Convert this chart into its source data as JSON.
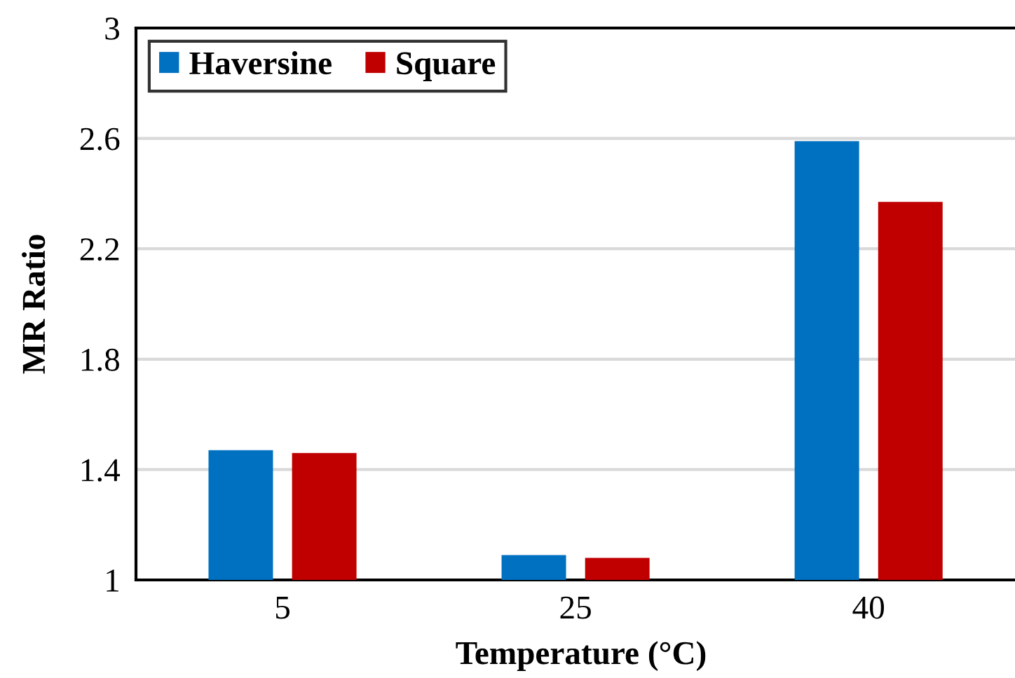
{
  "chart_data": {
    "type": "bar",
    "xlabel": "Temperature (°C)",
    "ylabel": "MR Ratio",
    "categories": [
      "5",
      "25",
      "40"
    ],
    "series": [
      {
        "name": "Haversine",
        "color": "#0070c0",
        "values": [
          1.47,
          1.09,
          2.59
        ]
      },
      {
        "name": "Square",
        "color": "#c00000",
        "values": [
          1.46,
          1.08,
          2.37
        ]
      }
    ],
    "ylim": [
      1,
      3
    ],
    "yticks": [
      1,
      1.4,
      1.8,
      2.2,
      2.6,
      3
    ],
    "grid": "y",
    "legend": "top left"
  }
}
